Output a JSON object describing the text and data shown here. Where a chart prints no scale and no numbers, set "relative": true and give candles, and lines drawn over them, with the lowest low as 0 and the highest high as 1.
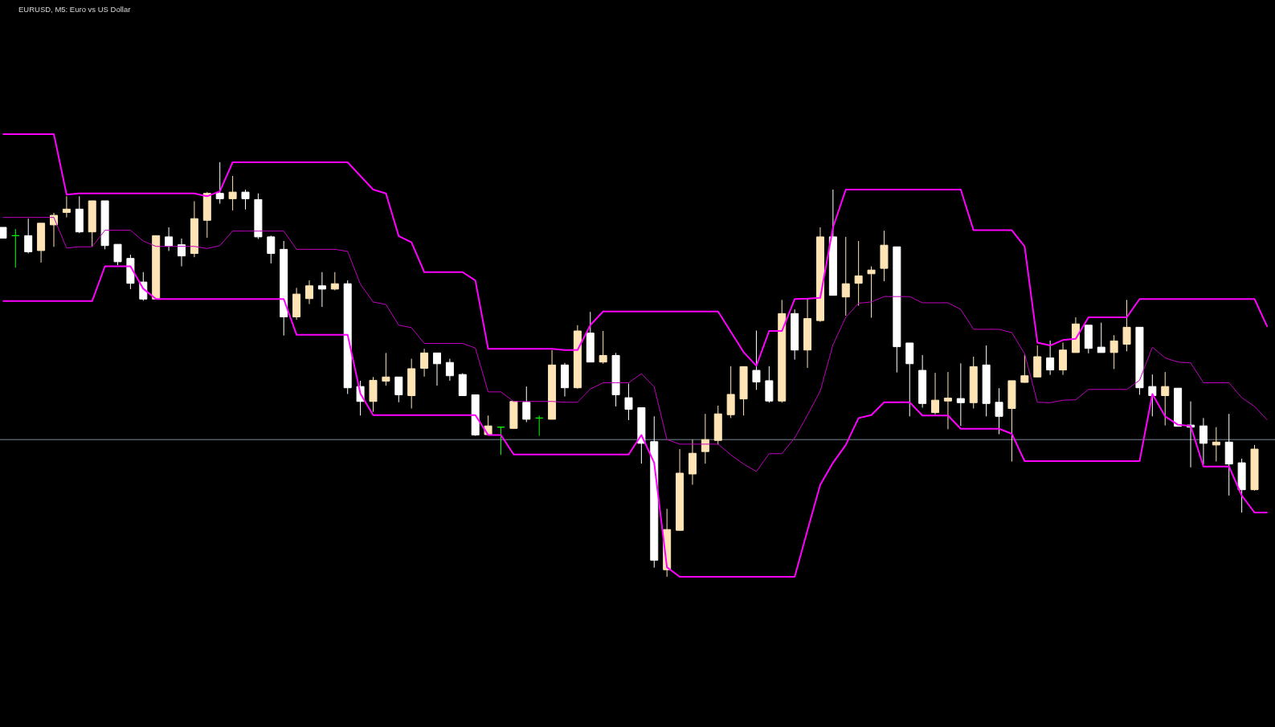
{
  "chart_data": {
    "type": "candlestick",
    "title": "EURUSD, M5: Euro vs US Dollar",
    "relative": true,
    "categories": [
      null,
      null,
      null,
      null,
      null,
      null,
      null,
      null,
      null,
      null,
      null,
      null,
      null,
      null,
      null,
      null,
      null,
      null,
      null,
      null,
      null,
      null,
      null,
      null,
      null,
      null,
      null,
      null,
      null,
      null,
      null,
      null,
      null,
      null,
      null,
      null,
      null,
      null,
      null,
      null,
      null,
      null,
      null,
      null,
      null,
      null,
      null,
      null,
      null,
      null,
      null,
      null,
      null,
      null,
      null,
      null,
      null,
      null,
      null,
      null,
      null,
      null,
      null,
      null,
      null,
      null,
      null,
      null,
      null,
      null,
      null,
      null,
      null,
      null,
      null,
      null,
      null,
      null,
      null,
      null,
      null,
      null,
      null,
      null,
      null,
      null,
      null,
      null,
      null,
      null,
      null,
      null,
      null,
      null,
      null,
      null,
      null,
      null,
      null,
      null
    ],
    "ohlc": [
      [
        0.843,
        0.843,
        0.817,
        0.817
      ],
      [
        0.823,
        0.839,
        0.746,
        0.823
      ],
      [
        0.823,
        0.864,
        0.78,
        0.784
      ],
      [
        0.787,
        0.853,
        0.758,
        0.853
      ],
      [
        0.849,
        0.878,
        0.796,
        0.872
      ],
      [
        0.879,
        0.918,
        0.867,
        0.887
      ],
      [
        0.887,
        0.918,
        0.829,
        0.832
      ],
      [
        0.832,
        0.907,
        0.797,
        0.907
      ],
      [
        0.907,
        0.907,
        0.79,
        0.799
      ],
      [
        0.802,
        0.802,
        0.752,
        0.76
      ],
      [
        0.768,
        0.777,
        0.694,
        0.708
      ],
      [
        0.711,
        0.735,
        0.666,
        0.67
      ],
      [
        0.67,
        0.823,
        0.67,
        0.823
      ],
      [
        0.82,
        0.843,
        0.786,
        0.798
      ],
      [
        0.801,
        0.816,
        0.749,
        0.774
      ],
      [
        0.78,
        0.906,
        0.771,
        0.864
      ],
      [
        0.86,
        0.928,
        0.818,
        0.925
      ],
      [
        0.925,
        1,
        0.9,
        0.912
      ],
      [
        0.912,
        0.967,
        0.884,
        0.928
      ],
      [
        0.928,
        0.934,
        0.886,
        0.912
      ],
      [
        0.91,
        0.925,
        0.815,
        0.82
      ],
      [
        0.82,
        0.823,
        0.756,
        0.78
      ],
      [
        0.79,
        0.81,
        0.582,
        0.627
      ],
      [
        0.627,
        0.697,
        0.62,
        0.682
      ],
      [
        0.671,
        0.715,
        0.658,
        0.702
      ],
      [
        0.702,
        0.735,
        0.651,
        0.694
      ],
      [
        0.694,
        0.735,
        0.691,
        0.707
      ],
      [
        0.707,
        0.715,
        0.441,
        0.456
      ],
      [
        0.459,
        0.473,
        0.389,
        0.423
      ],
      [
        0.423,
        0.482,
        0.398,
        0.474
      ],
      [
        0.472,
        0.54,
        0.461,
        0.482
      ],
      [
        0.482,
        0.482,
        0.421,
        0.439
      ],
      [
        0.437,
        0.526,
        0.406,
        0.502
      ],
      [
        0.503,
        0.55,
        0.483,
        0.54
      ],
      [
        0.54,
        0.54,
        0.461,
        0.514
      ],
      [
        0.517,
        0.526,
        0.473,
        0.485
      ],
      [
        0.488,
        0.491,
        0.436,
        0.437
      ],
      [
        0.439,
        0.439,
        0.34,
        0.342
      ],
      [
        0.343,
        0.389,
        0.343,
        0.364
      ],
      [
        0.361,
        0.362,
        0.294,
        0.361
      ],
      [
        0.358,
        0.423,
        0.358,
        0.423
      ],
      [
        0.421,
        0.459,
        0.373,
        0.38
      ],
      [
        0.383,
        0.389,
        0.34,
        0.383
      ],
      [
        0.38,
        0.547,
        0.38,
        0.511
      ],
      [
        0.511,
        0.516,
        0.435,
        0.456
      ],
      [
        0.456,
        0.607,
        0.454,
        0.593
      ],
      [
        0.588,
        0.639,
        0.518,
        0.518
      ],
      [
        0.518,
        0.593,
        0.514,
        0.534
      ],
      [
        0.534,
        0.54,
        0.411,
        0.439
      ],
      [
        0.432,
        0.466,
        0.378,
        0.404
      ],
      [
        0.408,
        0.408,
        0.273,
        0.322
      ],
      [
        0.326,
        0.387,
        0.022,
        0.04
      ],
      [
        0.017,
        0.164,
        0,
        0.114
      ],
      [
        0.112,
        0.308,
        0.112,
        0.25
      ],
      [
        0.248,
        0.331,
        0.222,
        0.298
      ],
      [
        0.302,
        0.393,
        0.273,
        0.331
      ],
      [
        0.329,
        0.413,
        0.319,
        0.393
      ],
      [
        0.391,
        0.508,
        0.383,
        0.44
      ],
      [
        0.429,
        0.507,
        0.389,
        0.507
      ],
      [
        0.498,
        0.594,
        0.451,
        0.47
      ],
      [
        0.473,
        0.508,
        0.42,
        0.424
      ],
      [
        0.424,
        0.668,
        0.42,
        0.635
      ],
      [
        0.635,
        0.645,
        0.524,
        0.547
      ],
      [
        0.547,
        0.671,
        0.504,
        0.623
      ],
      [
        0.618,
        0.843,
        0.615,
        0.82
      ],
      [
        0.82,
        0.934,
        0.679,
        0.679
      ],
      [
        0.675,
        0.82,
        0.63,
        0.707
      ],
      [
        0.708,
        0.81,
        0.654,
        0.726
      ],
      [
        0.731,
        0.749,
        0.625,
        0.74
      ],
      [
        0.744,
        0.835,
        0.713,
        0.8
      ],
      [
        0.796,
        0.796,
        0.493,
        0.555
      ],
      [
        0.564,
        0.564,
        0.387,
        0.514
      ],
      [
        0.498,
        0.535,
        0.408,
        0.418
      ],
      [
        0.396,
        0.492,
        0.392,
        0.426
      ],
      [
        0.424,
        0.494,
        0.356,
        0.431
      ],
      [
        0.43,
        0.515,
        0.364,
        0.42
      ],
      [
        0.42,
        0.531,
        0.406,
        0.507
      ],
      [
        0.511,
        0.558,
        0.387,
        0.418
      ],
      [
        0.421,
        0.455,
        0.344,
        0.387
      ],
      [
        0.406,
        0.473,
        0.278,
        0.473
      ],
      [
        0.469,
        0.536,
        0.468,
        0.485
      ],
      [
        0.482,
        0.558,
        0.482,
        0.531
      ],
      [
        0.528,
        0.57,
        0.487,
        0.499
      ],
      [
        0.499,
        0.565,
        0.487,
        0.547
      ],
      [
        0.541,
        0.626,
        0.541,
        0.61
      ],
      [
        0.607,
        0.607,
        0.539,
        0.551
      ],
      [
        0.554,
        0.613,
        0.541,
        0.541
      ],
      [
        0.541,
        0.583,
        0.501,
        0.569
      ],
      [
        0.561,
        0.668,
        0.544,
        0.602
      ],
      [
        0.602,
        0.602,
        0.439,
        0.456
      ],
      [
        0.459,
        0.488,
        0.387,
        0.437
      ],
      [
        0.437,
        0.494,
        0.365,
        0.459
      ],
      [
        0.455,
        0.455,
        0.363,
        0.363
      ],
      [
        0.366,
        0.423,
        0.264,
        0.361
      ],
      [
        0.364,
        0.383,
        0.271,
        0.322
      ],
      [
        0.318,
        0.361,
        0.278,
        0.325
      ],
      [
        0.325,
        0.393,
        0.196,
        0.272
      ],
      [
        0.275,
        0.285,
        0.155,
        0.21
      ],
      [
        0.21,
        0.318,
        0.208,
        0.308
      ],
      null
    ],
    "colors": [
      "#ffffff",
      "#00ff00",
      "#ffffff",
      "#ffe4b5",
      "#ffe4b5",
      "#ffe4b5",
      "#ffffff",
      "#ffe4b5",
      "#ffffff",
      "#ffffff",
      "#ffffff",
      "#ffffff",
      "#ffe4b5",
      "#ffffff",
      "#ffffff",
      "#ffe4b5",
      "#ffe4b5",
      "#ffffff",
      "#ffe4b5",
      "#ffffff",
      "#ffffff",
      "#ffffff",
      "#ffffff",
      "#ffe4b5",
      "#ffe4b5",
      "#ffffff",
      "#ffe4b5",
      "#ffffff",
      "#ffffff",
      "#ffe4b5",
      "#ffe4b5",
      "#ffffff",
      "#ffe4b5",
      "#ffe4b5",
      "#ffffff",
      "#ffffff",
      "#ffffff",
      "#ffffff",
      "#ffe4b5",
      "#00ff00",
      "#ffe4b5",
      "#ffffff",
      "#00ff00",
      "#ffe4b5",
      "#ffffff",
      "#ffe4b5",
      "#ffffff",
      "#ffe4b5",
      "#ffffff",
      "#ffffff",
      "#ffffff",
      "#ffffff",
      "#ffe4b5",
      "#ffe4b5",
      "#ffe4b5",
      "#ffe4b5",
      "#ffe4b5",
      "#ffe4b5",
      "#ffe4b5",
      "#ffffff",
      "#ffffff",
      "#ffe4b5",
      "#ffffff",
      "#ffe4b5",
      "#ffe4b5",
      "#ffffff",
      "#ffe4b5",
      "#ffe4b5",
      "#ffe4b5",
      "#ffe4b5",
      "#ffffff",
      "#ffffff",
      "#ffffff",
      "#ffe4b5",
      "#ffe4b5",
      "#ffffff",
      "#ffe4b5",
      "#ffffff",
      "#ffffff",
      "#ffe4b5",
      "#ffe4b5",
      "#ffe4b5",
      "#ffffff",
      "#ffe4b5",
      "#ffe4b5",
      "#ffffff",
      "#ffffff",
      "#ffe4b5",
      "#ffe4b5",
      "#ffffff",
      "#ffffff",
      "#ffe4b5",
      "#ffffff",
      "#ffffff",
      "#ffffff",
      "#ffe4b5",
      "#ffffff",
      "#ffffff",
      "#ffe4b5",
      null
    ],
    "series": [
      {
        "type": "line",
        "color": "#ff00ff",
        "values": [
          1.068,
          1.068,
          1.068,
          1.068,
          1.068,
          0.922,
          0.925,
          0.925,
          0.925,
          0.925,
          0.925,
          0.925,
          0.925,
          0.925,
          0.925,
          0.925,
          0.918,
          0.93,
          1,
          1,
          1,
          1,
          1,
          1,
          1,
          1,
          1,
          1,
          0.967,
          0.934,
          0.925,
          0.822,
          0.807,
          0.735,
          0.735,
          0.735,
          0.735,
          0.715,
          0.55,
          0.55,
          0.55,
          0.55,
          0.55,
          0.55,
          0.547,
          0.547,
          0.607,
          0.64,
          0.64,
          0.64,
          0.64,
          0.64,
          0.64,
          0.64,
          0.64,
          0.64,
          0.64,
          0.591,
          0.542,
          0.509,
          0.593,
          0.593,
          0.67,
          0.671,
          0.673,
          0.843,
          0.934,
          0.934,
          0.934,
          0.934,
          0.934,
          0.934,
          0.934,
          0.934,
          0.934,
          0.934,
          0.836,
          0.836,
          0.836,
          0.836,
          0.797,
          0.565,
          0.558,
          0.571,
          0.574,
          0.626,
          0.626,
          0.626,
          0.626,
          0.67,
          0.67,
          0.67,
          0.67,
          0.67,
          0.67,
          0.67,
          0.67,
          0.67,
          0.67,
          0.603
        ]
      },
      {
        "type": "line",
        "color": "#c000c0",
        "values": [
          0.867,
          0.867,
          0.867,
          0.867,
          0.867,
          0.793,
          0.796,
          0.796,
          0.836,
          0.836,
          0.836,
          0.81,
          0.797,
          0.797,
          0.797,
          0.797,
          0.792,
          0.799,
          0.834,
          0.834,
          0.834,
          0.834,
          0.834,
          0.79,
          0.79,
          0.79,
          0.79,
          0.785,
          0.706,
          0.663,
          0.657,
          0.607,
          0.601,
          0.563,
          0.563,
          0.563,
          0.563,
          0.552,
          0.446,
          0.446,
          0.423,
          0.423,
          0.423,
          0.423,
          0.421,
          0.421,
          0.453,
          0.468,
          0.468,
          0.468,
          0.49,
          0.458,
          0.331,
          0.32,
          0.32,
          0.32,
          0.32,
          0.294,
          0.272,
          0.254,
          0.297,
          0.297,
          0.335,
          0.39,
          0.448,
          0.56,
          0.626,
          0.66,
          0.663,
          0.676,
          0.676,
          0.676,
          0.661,
          0.661,
          0.661,
          0.645,
          0.597,
          0.597,
          0.597,
          0.589,
          0.538,
          0.421,
          0.42,
          0.426,
          0.427,
          0.452,
          0.452,
          0.452,
          0.452,
          0.474,
          0.554,
          0.528,
          0.518,
          0.516,
          0.468,
          0.468,
          0.468,
          0.432,
          0.411,
          0.378
        ]
      },
      {
        "type": "line",
        "color": "#ff00ff",
        "values": [
          0.665,
          0.665,
          0.665,
          0.665,
          0.665,
          0.665,
          0.665,
          0.665,
          0.749,
          0.749,
          0.749,
          0.695,
          0.67,
          0.67,
          0.67,
          0.67,
          0.67,
          0.67,
          0.67,
          0.67,
          0.67,
          0.67,
          0.67,
          0.584,
          0.584,
          0.584,
          0.584,
          0.584,
          0.442,
          0.39,
          0.39,
          0.39,
          0.39,
          0.39,
          0.39,
          0.39,
          0.39,
          0.39,
          0.342,
          0.342,
          0.295,
          0.295,
          0.295,
          0.295,
          0.295,
          0.295,
          0.295,
          0.295,
          0.295,
          0.295,
          0.342,
          0.275,
          0.023,
          0,
          0,
          0,
          0,
          0,
          0,
          0,
          0,
          0,
          0,
          0.112,
          0.222,
          0.275,
          0.318,
          0.383,
          0.39,
          0.421,
          0.421,
          0.421,
          0.389,
          0.389,
          0.389,
          0.357,
          0.357,
          0.357,
          0.357,
          0.345,
          0.279,
          0.279,
          0.279,
          0.279,
          0.279,
          0.279,
          0.279,
          0.279,
          0.279,
          0.279,
          0.441,
          0.387,
          0.367,
          0.364,
          0.266,
          0.266,
          0.266,
          0.196,
          0.155,
          0.155
        ]
      }
    ],
    "ref_lines": [
      {
        "axis": "y",
        "value": 0.331,
        "color": "#778899"
      }
    ]
  }
}
